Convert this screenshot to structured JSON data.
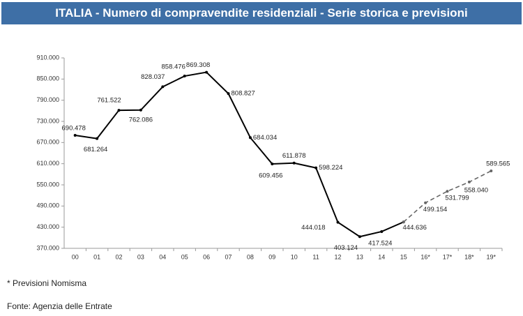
{
  "chart_data": {
    "type": "line",
    "title": "ITALIA - Numero di compravendite residenziali - Serie storica e previsioni",
    "categories": [
      "00",
      "01",
      "02",
      "03",
      "04",
      "05",
      "06",
      "07",
      "08",
      "09",
      "10",
      "11",
      "12",
      "13",
      "14",
      "15",
      "16*",
      "17*",
      "18*",
      "19*"
    ],
    "series": [
      {
        "name": "Serie storica",
        "color": "#000000",
        "dashed": false,
        "values": [
          690478,
          681264,
          761522,
          762086,
          828037,
          858476,
          869308,
          808827,
          684034,
          609456,
          611878,
          598224,
          444018,
          403124,
          417524,
          444636,
          null,
          null,
          null,
          null
        ],
        "value_labels": [
          "690.478",
          "681.264",
          "761.522",
          "762.086",
          "828.037",
          "858.476",
          "869.308",
          "808.827",
          "684.034",
          "609.456",
          "611.878",
          "598.224",
          "444.018",
          "403.124",
          "417.524",
          "444.636",
          null,
          null,
          null,
          null
        ]
      },
      {
        "name": "Previsioni",
        "color": "#666666",
        "dashed": true,
        "values": [
          null,
          null,
          null,
          null,
          null,
          null,
          null,
          null,
          null,
          null,
          null,
          null,
          null,
          null,
          null,
          444636,
          499154,
          531799,
          558040,
          589565
        ],
        "value_labels": [
          null,
          null,
          null,
          null,
          null,
          null,
          null,
          null,
          null,
          null,
          null,
          null,
          null,
          null,
          null,
          null,
          "499.154",
          "531.799",
          "558.040",
          "589.565"
        ]
      }
    ],
    "ylim": [
      370000,
      910000
    ],
    "yticks": [
      {
        "value": 370000,
        "label": "370.000"
      },
      {
        "value": 430000,
        "label": "430.000"
      },
      {
        "value": 490000,
        "label": "490.000"
      },
      {
        "value": 550000,
        "label": "550.000"
      },
      {
        "value": 610000,
        "label": "610.000"
      },
      {
        "value": 670000,
        "label": "670.000"
      },
      {
        "value": 730000,
        "label": "730.000"
      },
      {
        "value": 790000,
        "label": "790.000"
      },
      {
        "value": 850000,
        "label": "850.000"
      },
      {
        "value": 910000,
        "label": "910.000"
      }
    ],
    "notes": [
      "* Previsioni Nomisma",
      "Fonte: Agenzia delle Entrate"
    ]
  }
}
